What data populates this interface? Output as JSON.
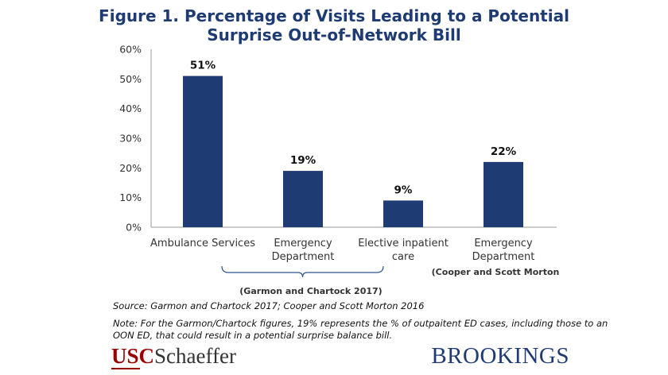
{
  "title": {
    "line1": "Figure 1. Percentage of Visits Leading to a Potential",
    "line2": "Surprise Out-of-Network Bill"
  },
  "chart_data": {
    "type": "bar",
    "categories": [
      [
        "Ambulance Services"
      ],
      [
        "Emergency",
        "Department"
      ],
      [
        "Elective inpatient",
        "care"
      ],
      [
        "Emergency",
        "Department"
      ]
    ],
    "values": [
      51,
      19,
      9,
      22
    ],
    "data_labels": [
      "51%",
      "19%",
      "9%",
      "22%"
    ],
    "yticks": [
      "0%",
      "10%",
      "20%",
      "30%",
      "40%",
      "50%",
      "60%"
    ],
    "ylim": [
      0,
      60
    ],
    "grid": false,
    "bar_color": "#1f3b73",
    "group_annotations": [
      {
        "label": "(Garmon and Chartock 2017)"
      },
      {
        "label": "(Cooper and Scott Morton"
      }
    ]
  },
  "notes": {
    "source": "Source: Garmon and Chartock 2017; Cooper and Scott Morton 2016",
    "note_line1": "Note: For the Garmon/Chartock figures, 19% represents the % of outpaitent ED cases, including those to an",
    "note_line2": "OON ED, that could result in a potential surprise balance bill."
  },
  "logos": {
    "usc_part1": "USC",
    "usc_part2": "Schaeffer",
    "brookings": "BROOKINGS"
  }
}
